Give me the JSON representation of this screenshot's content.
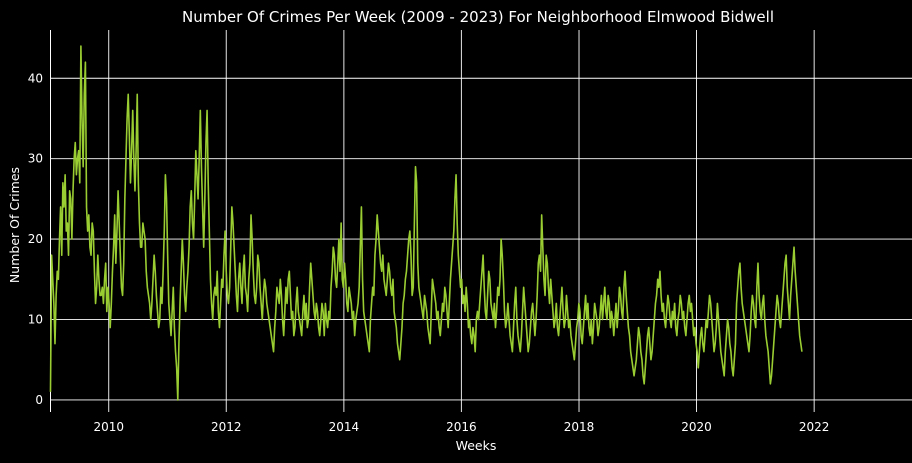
{
  "chart_data": {
    "type": "line",
    "title": "Number Of Crimes Per Week (2009 - 2023) For Neighborhood Elmwood Bidwell",
    "xlabel": "Weeks",
    "ylabel": "Number Of Crimes",
    "x_ticks": [
      "2010",
      "2012",
      "2014",
      "2016",
      "2018",
      "2020",
      "2022"
    ],
    "y_ticks": [
      0,
      10,
      20,
      30,
      40
    ],
    "xlim": [
      "2009-01-01",
      "2023-09-01"
    ],
    "ylim": [
      -1.5,
      46
    ],
    "grid": true,
    "legend": "none",
    "colors": {
      "background": "#000000",
      "line": "#9acd32",
      "grid": "#ffffff",
      "text": "#ffffff"
    },
    "series": [
      {
        "x_start": "2009-01-04",
        "x_step": "1 week",
        "values": [
          1,
          18,
          15,
          12,
          7,
          13,
          16,
          15,
          20,
          24,
          18,
          27,
          24,
          28,
          21,
          22,
          18,
          26,
          25,
          20,
          26,
          30,
          32,
          28,
          30,
          31,
          27,
          44,
          35,
          29,
          38,
          42,
          24,
          21,
          23,
          19,
          18,
          22,
          21,
          16,
          12,
          14,
          18,
          15,
          13,
          13,
          14,
          12,
          15,
          17,
          11,
          14,
          12,
          9,
          12,
          16,
          19,
          23,
          17,
          21,
          26,
          22,
          18,
          14,
          13,
          17,
          25,
          30,
          35,
          38,
          33,
          27,
          31,
          36,
          30,
          26,
          31,
          38,
          27,
          22,
          19,
          19,
          22,
          21,
          20,
          16,
          14,
          13,
          12,
          10,
          12,
          15,
          18,
          16,
          13,
          11,
          9,
          10,
          14,
          12,
          16,
          21,
          28,
          25,
          18,
          12,
          10,
          8,
          11,
          14,
          9,
          6,
          4,
          0,
          7,
          12,
          16,
          20,
          17,
          13,
          11,
          14,
          16,
          19,
          24,
          26,
          22,
          20,
          25,
          31,
          28,
          25,
          30,
          36,
          29,
          24,
          19,
          25,
          32,
          36,
          27,
          21,
          15,
          12,
          10,
          13,
          14,
          13,
          16,
          11,
          9,
          12,
          15,
          14,
          18,
          21,
          16,
          13,
          12,
          14,
          19,
          24,
          22,
          19,
          16,
          13,
          11,
          15,
          17,
          14,
          12,
          16,
          18,
          14,
          13,
          11,
          15,
          17,
          23,
          20,
          16,
          13,
          12,
          14,
          18,
          17,
          14,
          12,
          10,
          13,
          15,
          14,
          12,
          11,
          10,
          9,
          8,
          7,
          6,
          9,
          11,
          14,
          13,
          12,
          15,
          13,
          10,
          8,
          11,
          14,
          12,
          15,
          16,
          13,
          10,
          11,
          8,
          9,
          12,
          14,
          11,
          10,
          9,
          8,
          11,
          13,
          10,
          12,
          9,
          10,
          14,
          17,
          15,
          13,
          11,
          10,
          12,
          11,
          9,
          8,
          10,
          12,
          11,
          8,
          12,
          10,
          9,
          11,
          10,
          14,
          16,
          19,
          18,
          15,
          14,
          17,
          20,
          16,
          22,
          15,
          14,
          17,
          15,
          12,
          11,
          14,
          13,
          12,
          10,
          11,
          8,
          10,
          11,
          12,
          14,
          19,
          24,
          15,
          11,
          10,
          9,
          8,
          7,
          6,
          10,
          12,
          14,
          13,
          18,
          20,
          23,
          21,
          19,
          17,
          16,
          18,
          15,
          14,
          13,
          15,
          17,
          16,
          14,
          13,
          15,
          11,
          10,
          9,
          7,
          6,
          5,
          7,
          9,
          12,
          13,
          15,
          16,
          18,
          20,
          21,
          18,
          13,
          14,
          22,
          29,
          27,
          17,
          14,
          13,
          12,
          11,
          10,
          13,
          12,
          11,
          9,
          8,
          7,
          11,
          15,
          14,
          13,
          12,
          10,
          11,
          9,
          8,
          10,
          12,
          11,
          14,
          13,
          11,
          9,
          12,
          15,
          17,
          19,
          21,
          25,
          28,
          22,
          18,
          16,
          14,
          15,
          12,
          13,
          11,
          14,
          12,
          9,
          10,
          8,
          7,
          9,
          8,
          6,
          10,
          11,
          10,
          12,
          14,
          16,
          18,
          14,
          11,
          10,
          13,
          16,
          15,
          12,
          11,
          10,
          12,
          9,
          11,
          14,
          13,
          15,
          20,
          18,
          15,
          11,
          9,
          10,
          12,
          10,
          8,
          7,
          6,
          9,
          12,
          14,
          10,
          8,
          7,
          6,
          8,
          11,
          14,
          12,
          10,
          8,
          6,
          7,
          9,
          11,
          12,
          10,
          8,
          10,
          13,
          17,
          18,
          16,
          23,
          19,
          15,
          13,
          18,
          17,
          14,
          12,
          15,
          13,
          11,
          9,
          10,
          12,
          9,
          8,
          10,
          12,
          14,
          11,
          9,
          10,
          13,
          11,
          9,
          10,
          8,
          7,
          6,
          5,
          7,
          9,
          10,
          12,
          11,
          8,
          7,
          9,
          11,
          13,
          10,
          12,
          9,
          8,
          10,
          7,
          9,
          12,
          11,
          10,
          8,
          9,
          11,
          13,
          10,
          12,
          14,
          11,
          10,
          13,
          12,
          9,
          11,
          10,
          8,
          10,
          12,
          9,
          11,
          14,
          13,
          11,
          10,
          14,
          16,
          13,
          11,
          9,
          8,
          6,
          5,
          4,
          3,
          4,
          5,
          7,
          9,
          8,
          6,
          5,
          3,
          2,
          4,
          6,
          8,
          9,
          7,
          5,
          6,
          8,
          10,
          12,
          13,
          15,
          14,
          16,
          13,
          11,
          12,
          10,
          9,
          11,
          13,
          12,
          10,
          9,
          11,
          10,
          12,
          9,
          8,
          10,
          11,
          13,
          12,
          10,
          11,
          9,
          8,
          10,
          12,
          13,
          11,
          12,
          10,
          8,
          9,
          7,
          6,
          4,
          6,
          8,
          9,
          7,
          6,
          8,
          10,
          9,
          11,
          13,
          12,
          10,
          8,
          6,
          7,
          9,
          12,
          10,
          8,
          6,
          5,
          4,
          3,
          6,
          8,
          10,
          9,
          7,
          6,
          4,
          3,
          5,
          7,
          12,
          14,
          16,
          17,
          14,
          12,
          11,
          10,
          9,
          8,
          7,
          6,
          8,
          11,
          13,
          12,
          10,
          9,
          14,
          17,
          13,
          11,
          10,
          12,
          13,
          10,
          8,
          7,
          6,
          4,
          2,
          3,
          5,
          7,
          9,
          11,
          13,
          12,
          10,
          9,
          11,
          13,
          15,
          17,
          18,
          14,
          12,
          10,
          13,
          15,
          17,
          19,
          16,
          14,
          12,
          10,
          8,
          7,
          6
        ]
      }
    ]
  }
}
